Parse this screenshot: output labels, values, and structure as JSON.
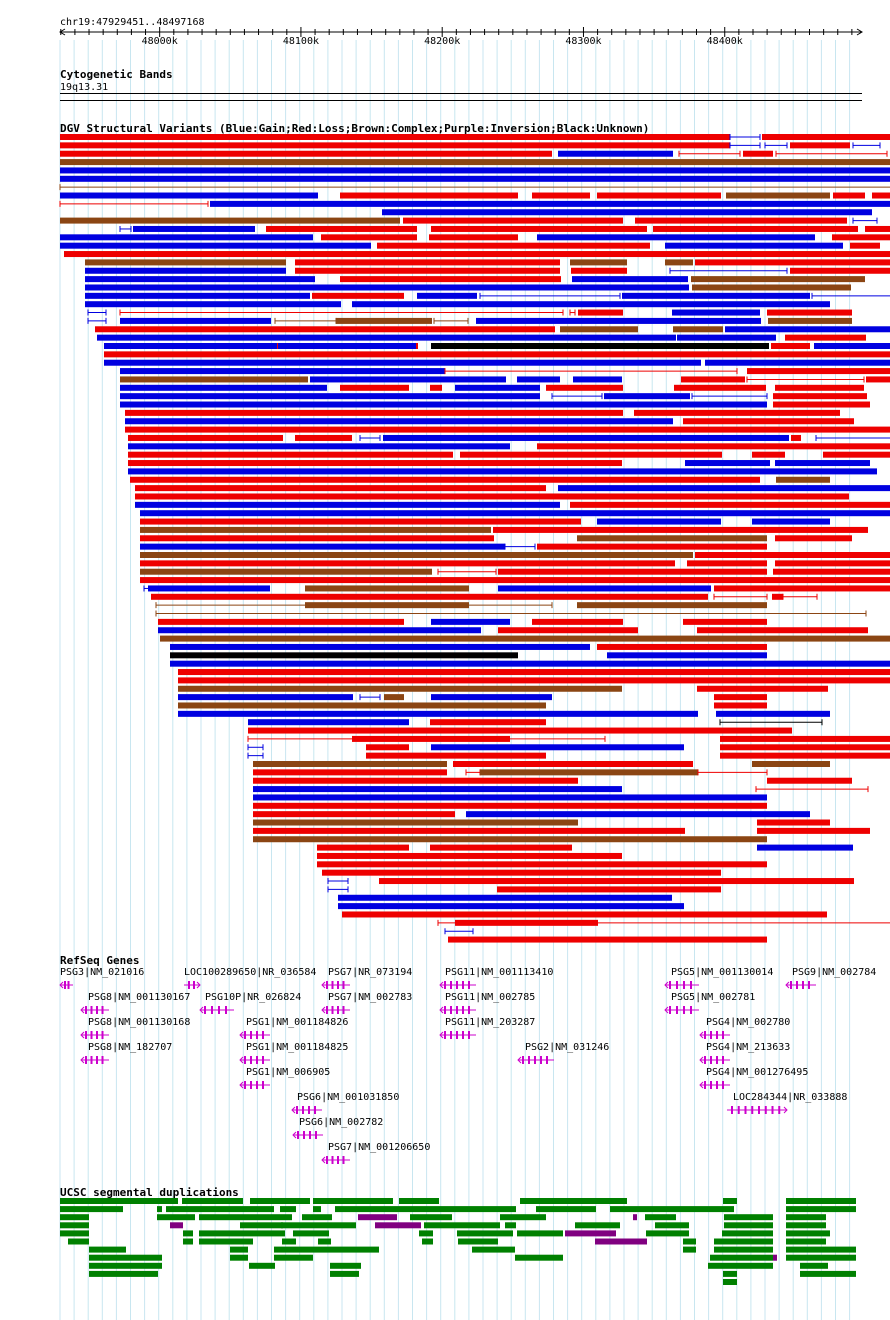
{
  "position": "chr19:47929451..48497168",
  "ruler": {
    "start": 47929451,
    "end": 48497168,
    "ticks": [
      "48000k",
      "48100k",
      "48200k",
      "48300k",
      "48400k"
    ]
  },
  "cytoband": {
    "title": "Cytogenetic Bands",
    "band": "19q13.31"
  },
  "dgv": {
    "title": "DGV Structural Variants (Blue:Gain;Red:Loss;Brown:Complex;Purple:Inversion;Black:Unknown)",
    "colors": {
      "gain": "#0000e0",
      "loss": "#ee0000",
      "complex": "#8b4513",
      "inversion": "#800080",
      "unknown": "#000000"
    },
    "rows": [
      [
        "R 0 670",
        "Bl 670 700",
        "R 702 862"
      ],
      [
        "R 0 670",
        "Bl 670 700",
        "Bl 705 727",
        "R 730 790",
        "Bl 793 820",
        "R 838 862"
      ],
      [
        "R 0 492",
        "B 498 613",
        "Rl 619 680",
        "R 683 713",
        "Rl 716 827",
        "R 842 862"
      ],
      [
        "Br 0 862"
      ],
      [
        "B 0 862"
      ],
      [
        "B 0 852"
      ],
      [
        "Brl 0 858"
      ],
      [
        "B 0 258",
        "R 280 458",
        "R 472 530",
        "R 537 661",
        "Br 666 770",
        "R 773 805",
        "R 812 862"
      ],
      [
        "Rl 0 148",
        "B 150 862"
      ],
      [
        "B 322 812",
        "R 845 862"
      ],
      [
        "Br 0 340",
        "R 343 563",
        "R 575 787",
        "Bl 793 817",
        "R 847 862"
      ],
      [
        "Bl 60 71",
        "B 73 195",
        "R 206 357",
        "R 371 587",
        "R 593 798",
        "R 805 862"
      ],
      [
        "B 0 253",
        "R 261 357",
        "R 369 458",
        "B 477 755",
        "R 772 844",
        "Rl 851 862"
      ],
      [
        "B 0 311",
        "R 317 590",
        "B 605 783",
        "R 790 820"
      ],
      [
        "R 4 862"
      ],
      [
        "Br 25 226",
        "R 235 500",
        "Br 510 567",
        "Br 605 633",
        "R 635 862"
      ],
      [
        "B 25 226",
        "R 235 500",
        "R 511 567",
        "Bl 610 727",
        "R 730 862"
      ],
      [
        "B 25 255",
        "R 280 501",
        "B 512 628",
        "Br 631 805"
      ],
      [
        "B 25 629",
        "Br 632 791"
      ],
      [
        "B 25 250",
        "R 252 344",
        "B 357 417",
        "Bl 420 560",
        "B 562 750",
        "Bl 752 847"
      ],
      [
        "B 25 281",
        "B 292 770"
      ],
      [
        "Bl 28 46",
        "Rl 60 503",
        "Rl 510 515",
        "R 518 563",
        "B 612 700",
        "R 707 792"
      ],
      [
        "Bl 28 46",
        "B 60 211",
        "Brl 215 276",
        "Br 276 372",
        "Brl 374 408",
        "B 416 701",
        "Br 708 792"
      ],
      [
        "R 35 495",
        "Br 500 578",
        "Br 613 663",
        "B 665 832"
      ],
      [
        "B 37 616",
        "B 617 716",
        "R 725 806"
      ],
      [
        "R 44 358",
        "B 44 217",
        "B 218 356",
        "K 371 709",
        "R 711 750",
        "B 754 843"
      ],
      [
        "R 44 862"
      ],
      [
        "B 44 641",
        "B 645 862"
      ],
      [
        "B 60 385",
        "Rl 385 677",
        "R 687 862"
      ],
      [
        "Br 60 248",
        "B 250 446",
        "B 457 500",
        "B 513 562",
        "R 621 685",
        "Rl 687 804",
        "R 806 862"
      ],
      [
        "B 60 267",
        "R 280 349",
        "R 370 382",
        "B 395 480",
        "R 486 563",
        "R 614 706",
        "R 715 804"
      ],
      [
        "B 60 480",
        "Bl 492 542",
        "B 544 630",
        "Bl 632 707",
        "R 713 807"
      ],
      [
        "B 60 707",
        "R 713 810"
      ],
      [
        "R 65 563",
        "R 574 780"
      ],
      [
        "B 65 613",
        "R 623 794"
      ],
      [
        "R 65 862"
      ],
      [
        "R 68 223",
        "R 235 292",
        "Bl 300 320",
        "B 323 729",
        "R 731 741",
        "Bl 756 839"
      ],
      [
        "B 68 450",
        "R 477 835"
      ],
      [
        "R 68 393",
        "R 400 662",
        "R 692 725",
        "R 763 862"
      ],
      [
        "R 68 562",
        "B 625 710",
        "B 715 810"
      ],
      [
        "B 68 817"
      ],
      [
        "R 70 700",
        "Br 716 770"
      ],
      [
        "R 75 486",
        "B 498 835"
      ],
      [
        "R 75 789"
      ],
      [
        "B 75 500",
        "R 510 862"
      ],
      [
        "B 80 862"
      ],
      [
        "R 80 521",
        "B 537 661",
        "B 692 770"
      ],
      [
        "Br 80 431",
        "R 433 808"
      ],
      [
        "R 80 434",
        "Br 517 707",
        "R 715 792"
      ],
      [
        "B 80 445",
        "Bl 445 475",
        "R 477 707"
      ],
      [
        "Br 80 633",
        "R 635 846"
      ],
      [
        "R 80 615",
        "R 627 707",
        "R 715 837"
      ],
      [
        "Br 80 372",
        "Rl 378 436",
        "R 438 707",
        "R 713 862"
      ],
      [
        "R 80 862"
      ],
      [
        "Bl 84 90",
        "B 88 210",
        "Br 245 409",
        "B 438 651",
        "R 654 862"
      ],
      [
        "R 91 648",
        "Rl 654 707",
        "R 712 723",
        "Rl 723 757"
      ],
      [
        "Brl 96 492",
        "Br 245 409",
        "Br 517 707"
      ],
      [
        "Brl 96 806"
      ],
      [
        "R 98 344",
        "B 371 450",
        "R 472 563",
        "R 623 707"
      ],
      [
        "B 98 421",
        "R 438 578",
        "R 637 808"
      ],
      [
        "Br 100 854"
      ],
      [
        "B 110 530",
        "R 537 707"
      ],
      [
        "K 110 458",
        "B 547 707"
      ],
      [
        "B 110 846"
      ],
      [
        "R 118 862"
      ],
      [
        "R 118 862"
      ],
      [
        "Br 118 562",
        "R 637 768"
      ],
      [
        "B 118 293",
        "Bl 300 320",
        "Br 324 344",
        "B 371 492",
        "R 654 707"
      ],
      [
        "Br 118 486",
        "R 654 707"
      ],
      [
        "B 118 638",
        "B 656 770"
      ],
      [
        "B 188 349",
        "R 370 486",
        "Kl 660 762"
      ],
      [
        "R 188 732"
      ],
      [
        "Rl 188 545",
        "R 292 450",
        "R 660 862"
      ],
      [
        "Bl 188 203",
        "R 306 349",
        "B 371 624",
        "R 660 862"
      ],
      [
        "Bl 188 203",
        "R 306 486",
        "R 660 862"
      ],
      [
        "Br 193 387",
        "R 393 633",
        "Br 692 770"
      ],
      [
        "R 193 387",
        "Rl 406 420",
        "Br 420 638",
        "Rl 638 707"
      ],
      [
        "R 193 518",
        "R 707 792"
      ],
      [
        "B 193 562",
        "Rl 696 808"
      ],
      [
        "B 193 707"
      ],
      [
        "R 193 707"
      ],
      [
        "R 193 395",
        "B 406 750"
      ],
      [
        "Br 193 518",
        "R 697 770"
      ],
      [
        "R 193 625",
        "R 697 810"
      ],
      [
        "Br 193 707"
      ],
      [
        "R 257 349",
        "R 370 512",
        "B 697 793"
      ],
      [
        "R 257 562"
      ],
      [
        "R 257 707"
      ],
      [
        "R 262 661"
      ],
      [
        "Bl 268 288",
        "R 319 794"
      ],
      [
        "Bl 268 288",
        "R 437 661"
      ],
      [
        "B 278 612"
      ],
      [
        "B 278 624"
      ],
      [
        "R 282 767"
      ],
      [
        "Rl 378 855",
        "R 395 538"
      ],
      [
        "Bl 385 413"
      ],
      [
        "R 388 707"
      ]
    ]
  },
  "refseq": {
    "title": "RefSeq Genes",
    "genes": [
      {
        "label": "PSG3|NM_021016",
        "dir": "<"
      },
      {
        "label": "LOC100289650|NR_036584",
        "dir": ">"
      },
      {
        "label": "PSG7|NR_073194",
        "dir": "<"
      },
      {
        "label": "PSG11|NM_001113410",
        "dir": "<"
      },
      {
        "label": "PSG5|NM_001130014",
        "dir": "<"
      },
      {
        "label": "PSG9|NM_002784",
        "dir": "<"
      },
      {
        "label": "PSG8|NM_001130167",
        "dir": "<"
      },
      {
        "label": "PSG10P|NR_026824",
        "dir": "<"
      },
      {
        "label": "PSG7|NM_002783",
        "dir": "<"
      },
      {
        "label": "PSG11|NM_002785",
        "dir": "<"
      },
      {
        "label": "PSG5|NM_002781",
        "dir": "<"
      },
      {
        "label": "PSG8|NM_001130168",
        "dir": "<"
      },
      {
        "label": "PSG1|NM_001184826",
        "dir": "<"
      },
      {
        "label": "PSG11|NM_203287",
        "dir": "<"
      },
      {
        "label": "PSG4|NM_002780",
        "dir": "<"
      },
      {
        "label": "PSG8|NM_182707",
        "dir": "<"
      },
      {
        "label": "PSG1|NM_001184825",
        "dir": "<"
      },
      {
        "label": "PSG2|NM_031246",
        "dir": "<"
      },
      {
        "label": "PSG4|NM_213633",
        "dir": "<"
      },
      {
        "label": "PSG1|NM_006905",
        "dir": "<"
      },
      {
        "label": "PSG4|NM_001276495",
        "dir": "<"
      },
      {
        "label": "PSG6|NM_001031850",
        "dir": "<"
      },
      {
        "label": "LOC284344|NR_033888",
        "dir": ">"
      },
      {
        "label": "PSG6|NM_002782",
        "dir": "<"
      },
      {
        "label": "PSG7|NM_001206650",
        "dir": "<"
      }
    ]
  },
  "segdups": {
    "title": "UCSC segmental duplications",
    "colors": {
      "G": "#008000",
      "P": "#800080"
    },
    "rows": [
      [
        "G 0 118",
        "G 122 183",
        "G 190 250",
        "G 253 333",
        "G 339 379",
        "G 460 567",
        "G 663 677",
        "G 726 796"
      ],
      [
        "G 0 63",
        "G 97 102",
        "G 106 214",
        "G 220 236",
        "G 253 261",
        "G 275 456",
        "G 476 536",
        "G 550 674",
        "G 726 796"
      ],
      [
        "G 0 29",
        "G 97 135",
        "G 139 232",
        "G 242 272",
        "P 298 337",
        "G 350 392",
        "G 440 486",
        "P 573 577",
        "G 585 616",
        "G 664 713",
        "G 726 766"
      ],
      [
        "G 0 29",
        "P 110 123",
        "G 180 223",
        "G 221 296",
        "P 315 361",
        "G 364 440",
        "G 445 456",
        "G 515 560",
        "G 595 629",
        "G 664 713",
        "G 726 766"
      ],
      [
        "G 0 29",
        "G 123 133",
        "G 139 225",
        "G 233 269",
        "G 359 373",
        "G 397 453",
        "G 457 503",
        "P 505 556",
        "G 586 629",
        "G 662 713",
        "G 726 770"
      ],
      [
        "G 8 29",
        "G 123 133",
        "G 139 193",
        "G 222 236",
        "G 258 271",
        "G 362 373",
        "G 398 438",
        "P 535 587",
        "G 623 636",
        "G 654 713",
        "G 726 766"
      ],
      [
        "G 29 66",
        "G 170 188",
        "G 214 222",
        "G 222 319",
        "G 412 455",
        "G 623 636",
        "G 654 713",
        "G 726 796"
      ],
      [
        "G 29 102",
        "G 170 188",
        "G 214 222",
        "G 222 253",
        "G 455 503",
        "G 650 713",
        "P 713 717",
        "G 726 796"
      ],
      [
        "G 29 102",
        "G 189 215",
        "G 270 301",
        "G 648 713",
        "G 740 768"
      ],
      [
        "G 29 98",
        "G 270 299",
        "G 663 677",
        "G 740 796"
      ],
      [
        "G 663 677"
      ]
    ]
  }
}
